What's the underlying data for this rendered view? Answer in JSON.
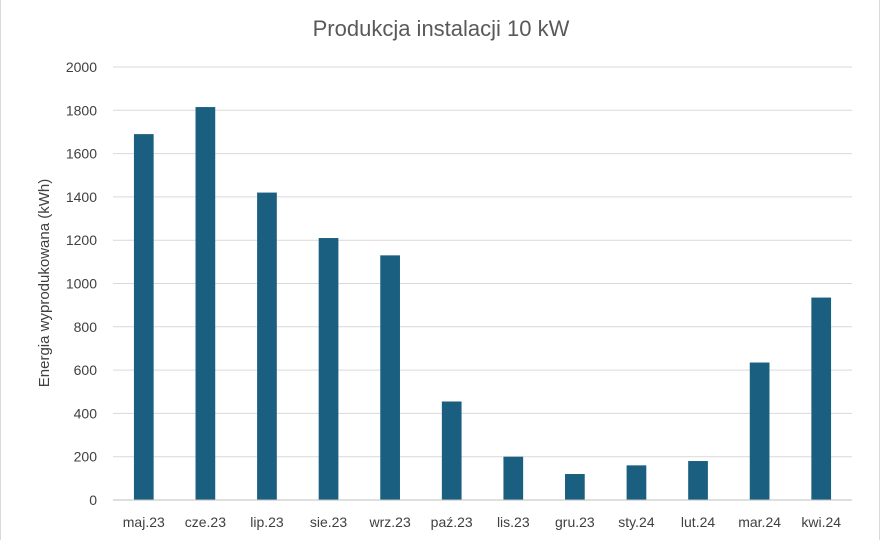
{
  "chart_data": {
    "type": "bar",
    "title": "Produkcja instalacji 10 kW",
    "xlabel": "",
    "ylabel": "Energia wyprodukowana (kWh)",
    "categories": [
      "maj.23",
      "cze.23",
      "lip.23",
      "sie.23",
      "wrz.23",
      "paź.23",
      "lis.23",
      "gru.23",
      "sty.24",
      "lut.24",
      "mar.24",
      "kwi.24"
    ],
    "values": [
      1690,
      1815,
      1420,
      1210,
      1130,
      455,
      200,
      120,
      160,
      180,
      635,
      935
    ],
    "ylim": [
      0,
      2000
    ],
    "yticks": [
      "0",
      "200",
      "400",
      "600",
      "800",
      "1000",
      "1200",
      "1400",
      "1600",
      "1800",
      "2000"
    ],
    "grid": true,
    "legend": "none",
    "bar_color": "#1a5f80",
    "grid_color": "#d9d9d9"
  }
}
